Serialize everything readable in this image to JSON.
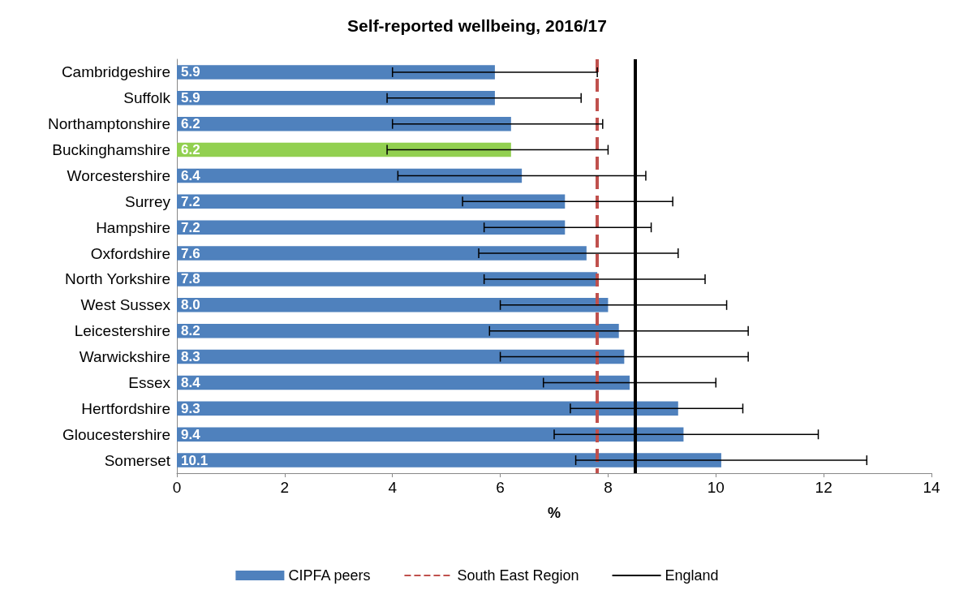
{
  "chart_data": {
    "type": "bar",
    "orientation": "horizontal",
    "title": "Self-reported wellbeing, 2016/17",
    "xlabel": "%",
    "categories": [
      "Cambridgeshire",
      "Suffolk",
      "Northamptonshire",
      "Buckinghamshire",
      "Worcestershire",
      "Surrey",
      "Hampshire",
      "Oxfordshire",
      "North Yorkshire",
      "West Sussex",
      "Leicestershire",
      "Warwickshire",
      "Essex",
      "Hertfordshire",
      "Gloucestershire",
      "Somerset"
    ],
    "series": [
      {
        "name": "CIPFA peers",
        "color": "#4f81bd",
        "colors": [
          "#4f81bd",
          "#4f81bd",
          "#4f81bd",
          "#92d050",
          "#4f81bd",
          "#4f81bd",
          "#4f81bd",
          "#4f81bd",
          "#4f81bd",
          "#4f81bd",
          "#4f81bd",
          "#4f81bd",
          "#4f81bd",
          "#4f81bd",
          "#4f81bd",
          "#4f81bd"
        ],
        "values": [
          5.9,
          5.9,
          6.2,
          6.2,
          6.4,
          7.2,
          7.2,
          7.6,
          7.8,
          8.0,
          8.2,
          8.3,
          8.4,
          9.3,
          9.4,
          10.1
        ],
        "value_labels": [
          "5.9",
          "5.9",
          "6.2",
          "6.2",
          "6.4",
          "7.2",
          "7.2",
          "7.6",
          "7.8",
          "8.0",
          "8.2",
          "8.3",
          "8.4",
          "9.3",
          "9.4",
          "10.1"
        ],
        "errors": [
          [
            4.0,
            7.8
          ],
          [
            3.9,
            7.5
          ],
          [
            4.0,
            7.9
          ],
          [
            3.9,
            8.0
          ],
          [
            4.1,
            8.7
          ],
          [
            5.3,
            9.2
          ],
          [
            5.7,
            8.8
          ],
          [
            5.6,
            9.3
          ],
          [
            5.7,
            9.8
          ],
          [
            6.0,
            10.2
          ],
          [
            5.8,
            10.6
          ],
          [
            6.0,
            10.6
          ],
          [
            6.8,
            10.0
          ],
          [
            7.3,
            10.5
          ],
          [
            7.0,
            11.9
          ],
          [
            7.4,
            12.8
          ]
        ]
      }
    ],
    "ref_lines": [
      {
        "axis": "x",
        "value": 7.8,
        "label": "South East Region",
        "color": "#c0504d",
        "line_style": "dashed"
      },
      {
        "axis": "x",
        "value": 8.5,
        "label": "England",
        "color": "#000000",
        "line_style": "solid"
      }
    ],
    "xlim": [
      0,
      14
    ],
    "xticks": [
      0,
      2,
      4,
      6,
      8,
      10,
      12,
      14
    ],
    "grid": false,
    "legend": "bottom"
  }
}
